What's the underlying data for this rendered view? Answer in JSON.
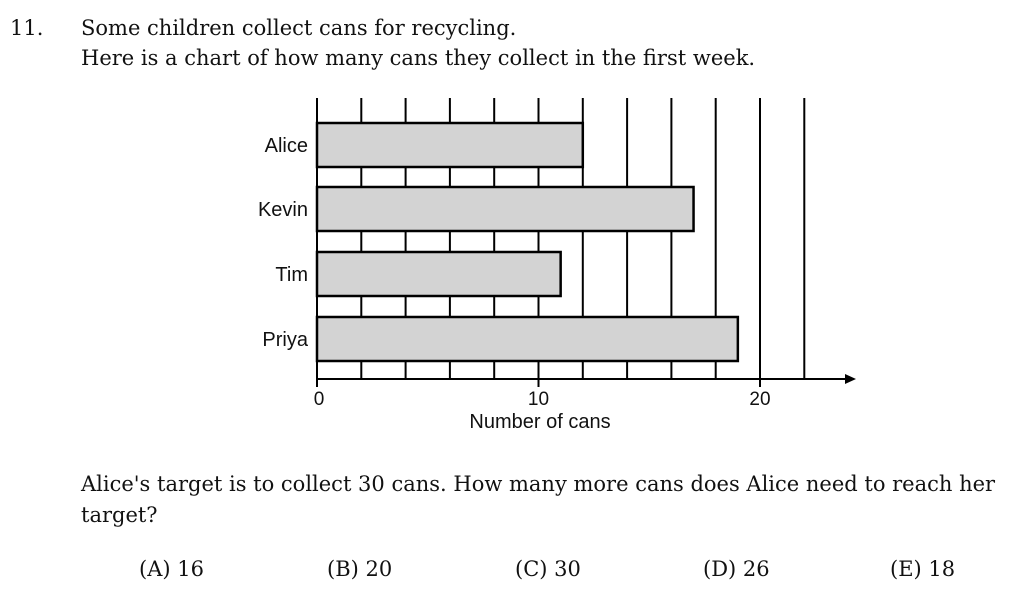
{
  "question": {
    "number": "11.",
    "intro_line1": "Some children collect cans for recycling.",
    "intro_line2": "Here is a chart of how many cans they collect in the first week.",
    "text": "Alice's target is to collect 30 cans. How many more cans does Alice need to reach her target?",
    "options": [
      {
        "label": "(A) 16"
      },
      {
        "label": "(B) 20"
      },
      {
        "label": "(C) 30"
      },
      {
        "label": "(D) 26"
      },
      {
        "label": "(E) 18"
      }
    ]
  },
  "chart_data": {
    "type": "bar",
    "orientation": "horizontal",
    "categories": [
      "Alice",
      "Kevin",
      "Tim",
      "Priya"
    ],
    "values": [
      12,
      17,
      11,
      19
    ],
    "xlabel": "Number of cans",
    "xticks": [
      0,
      10,
      20
    ],
    "gridlines_every": 2,
    "xlim": [
      0,
      24
    ],
    "grid": true,
    "bar_color": "#d3d3d3"
  }
}
